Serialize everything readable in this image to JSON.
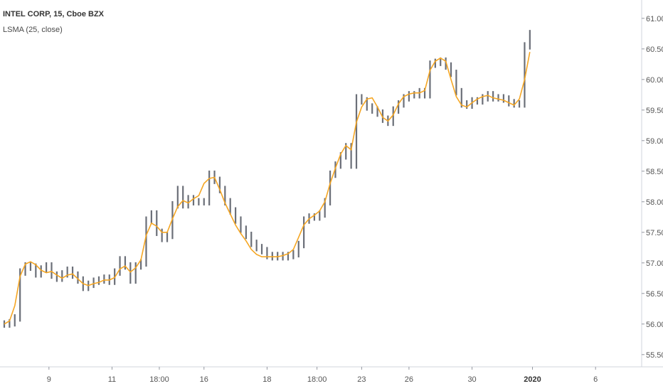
{
  "legend": {
    "title": "INTEL CORP, 15, Cboe BZX",
    "indicator": "LSMA (25, close)"
  },
  "colors": {
    "background": "#ffffff",
    "candle": "#6b6f78",
    "lsma": "#f5a623",
    "axis": "#9598a1"
  },
  "chart_data": {
    "type": "line",
    "title": "INTEL CORP, 15, Cboe BZX",
    "xlabel": "",
    "ylabel": "",
    "ylim": [
      55.3,
      61.3
    ],
    "y_ticks": [
      "61.00",
      "60.50",
      "60.00",
      "59.50",
      "59.00",
      "58.50",
      "58.00",
      "57.50",
      "57.00",
      "56.50",
      "56.00",
      "55.50"
    ],
    "x_ticks": [
      {
        "label": "9",
        "index": 8.5
      },
      {
        "label": "11",
        "index": 20.5
      },
      {
        "label": "18:00",
        "index": 29.5
      },
      {
        "label": "16",
        "index": 38
      },
      {
        "label": "18",
        "index": 50
      },
      {
        "label": "18:00",
        "index": 59.5
      },
      {
        "label": "23",
        "index": 68
      },
      {
        "label": "26",
        "index": 77
      },
      {
        "label": "30",
        "index": 89
      },
      {
        "label": "2020",
        "index": 100.5,
        "bold": true
      },
      {
        "label": "6",
        "index": 112.5
      }
    ],
    "x_range": [
      0,
      121
    ],
    "series": [
      {
        "name": "INTEL CORP",
        "type": "price",
        "values": [
          56.0,
          56.02,
          56.1,
          56.85,
          56.95,
          56.93,
          56.82,
          56.9,
          56.95,
          56.8,
          56.75,
          56.82,
          56.88,
          56.8,
          56.72,
          56.6,
          56.65,
          56.7,
          56.72,
          56.75,
          56.7,
          56.85,
          57.05,
          56.95,
          56.72,
          56.95,
          57.0,
          57.7,
          57.8,
          57.5,
          57.4,
          57.45,
          57.95,
          58.2,
          57.95,
          58.05,
          58.0,
          58.0,
          58.0,
          58.45,
          58.35,
          58.2,
          58.0,
          57.85,
          57.7,
          57.55,
          57.45,
          57.32,
          57.25,
          57.2,
          57.12,
          57.1,
          57.12,
          57.1,
          57.12,
          57.15,
          57.3,
          57.7,
          57.75,
          57.75,
          57.8,
          58.0,
          58.45,
          58.6,
          58.75,
          58.9,
          58.6,
          59.7,
          59.65,
          59.55,
          59.5,
          59.45,
          59.35,
          59.3,
          59.5,
          59.6,
          59.7,
          59.75,
          59.75,
          59.8,
          59.75,
          60.25,
          60.28,
          60.3,
          60.22,
          60.1,
          59.8,
          59.6,
          59.58,
          59.65,
          59.65,
          59.7,
          59.75,
          59.7,
          59.7,
          59.68,
          59.62,
          59.6,
          59.6,
          60.55,
          60.75
        ]
      },
      {
        "name": "LSMA (25, close)",
        "type": "line",
        "values": [
          56.0,
          56.05,
          56.3,
          56.78,
          56.98,
          57.02,
          56.97,
          56.88,
          56.84,
          56.86,
          56.8,
          56.75,
          56.8,
          56.82,
          56.74,
          56.66,
          56.63,
          56.66,
          56.68,
          56.72,
          56.72,
          56.76,
          56.9,
          56.95,
          56.85,
          56.92,
          57.05,
          57.45,
          57.65,
          57.6,
          57.5,
          57.5,
          57.72,
          57.92,
          58.02,
          57.98,
          58.05,
          58.1,
          58.3,
          58.38,
          58.4,
          58.2,
          57.98,
          57.8,
          57.62,
          57.48,
          57.36,
          57.22,
          57.14,
          57.1,
          57.1,
          57.1,
          57.1,
          57.12,
          57.15,
          57.22,
          57.42,
          57.62,
          57.72,
          57.78,
          57.85,
          58.0,
          58.3,
          58.55,
          58.78,
          58.92,
          58.85,
          59.3,
          59.55,
          59.68,
          59.7,
          59.55,
          59.38,
          59.32,
          59.42,
          59.6,
          59.72,
          59.76,
          59.78,
          59.78,
          59.82,
          60.15,
          60.3,
          60.35,
          60.3,
          60.0,
          59.72,
          59.58,
          59.55,
          59.62,
          59.68,
          59.72,
          59.74,
          59.7,
          59.68,
          59.66,
          59.62,
          59.58,
          59.68,
          60.0,
          60.45
        ]
      }
    ],
    "grid": false
  }
}
